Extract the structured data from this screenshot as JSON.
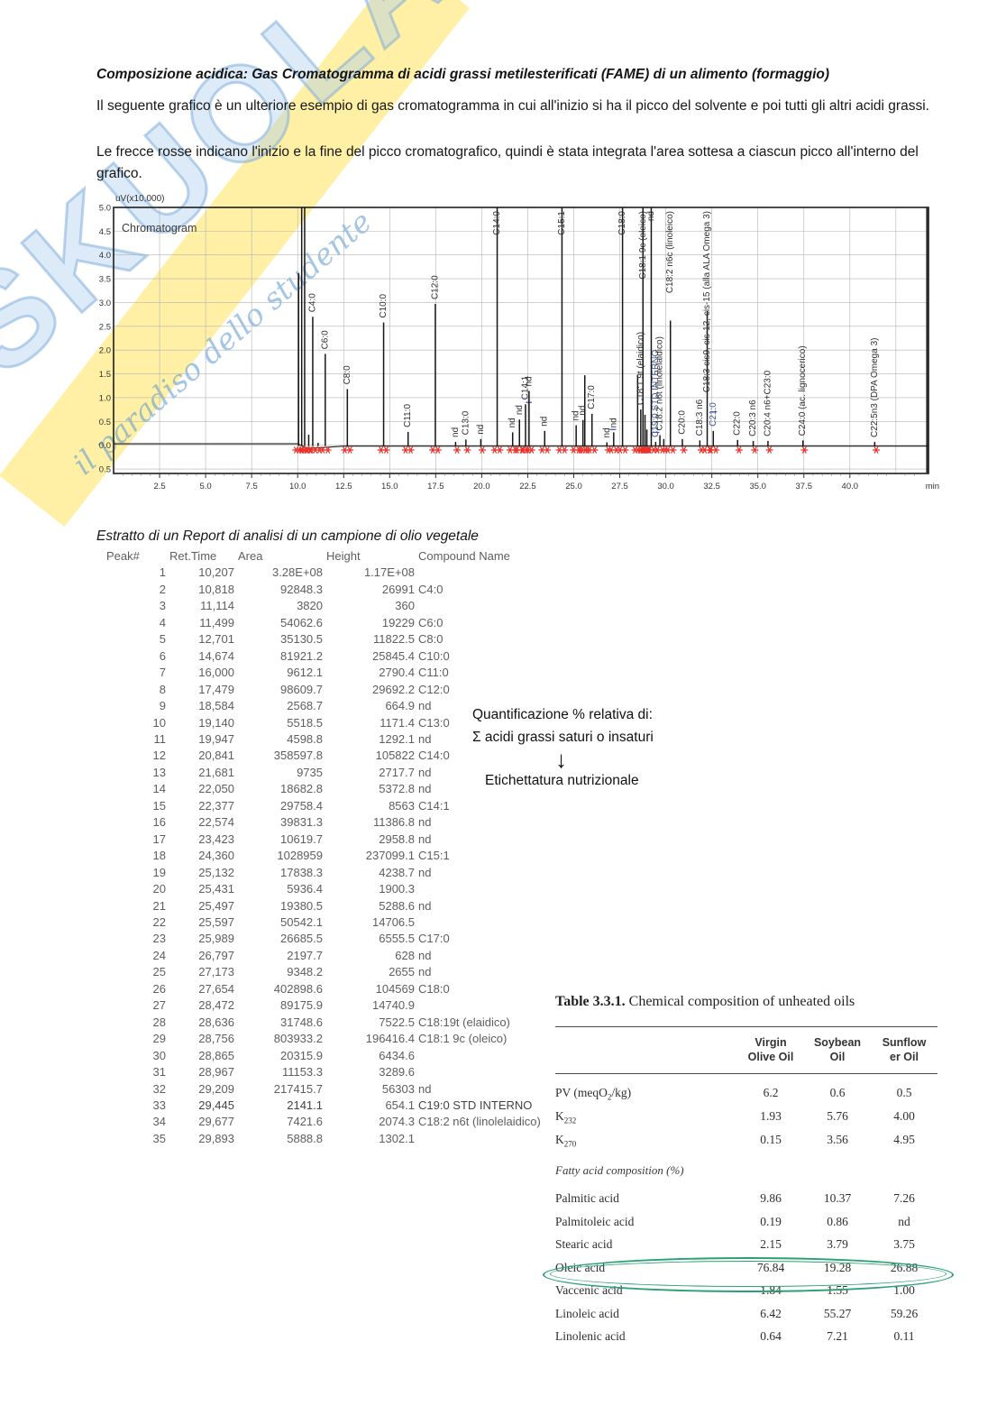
{
  "page": {
    "title": "Composizione acidica: Gas Cromatogramma di acidi grassi metilesterificati (FAME) di un alimento (formaggio)",
    "para1": "Il seguente grafico è un ulteriore esempio di gas cromatogramma in cui all'inizio si ha il picco del solvente e poi tutti gli altri acidi grassi.",
    "para2": "Le frecce rosse indicano l'inizio e la fine del picco cromatografico, quindi è stata integrata l'area sottesa a ciascun picco all'interno del grafico."
  },
  "watermark": {
    "brand": "SKUOLA",
    "tagline": "il paradiso dello studente",
    "band_color": "#ffdf43",
    "letters_color": "#9cc1e4"
  },
  "chart_data": {
    "type": "line",
    "title": "Chromatogram",
    "y_axis_label": "uV(x10,000)",
    "x_unit": "min",
    "xlim": [
      0,
      44.3
    ],
    "ylim": [
      -0.5,
      5.0
    ],
    "x_ticks": [
      2.5,
      5.0,
      7.5,
      10.0,
      12.5,
      15.0,
      17.5,
      20.0,
      22.5,
      25.0,
      27.5,
      30.0,
      32.5,
      35.0,
      37.5,
      40.0
    ],
    "y_ticks": [
      5.0,
      4.5,
      4.0,
      3.5,
      3.0,
      2.5,
      2.0,
      1.5,
      1.0,
      0.5,
      0.0,
      -0.5
    ],
    "grid": true,
    "marker_color": "#e8322a",
    "line_color": "#161616",
    "peaks": [
      {
        "t": 10.05,
        "h": 3.62
      },
      {
        "t": 10.22,
        "h": 6.0,
        "clip": true
      },
      {
        "t": 10.38,
        "h": 6.0,
        "clip": true
      },
      {
        "t": 10.6,
        "h": 0.22
      },
      {
        "t": 10.82,
        "h": 2.7,
        "label": "C4:0"
      },
      {
        "t": 11.11,
        "h": 0.05
      },
      {
        "t": 11.5,
        "h": 1.92,
        "label": "C6:0"
      },
      {
        "t": 12.7,
        "h": 1.18,
        "label": "C8:0"
      },
      {
        "t": 14.67,
        "h": 2.58,
        "label": "C10:0"
      },
      {
        "t": 16.0,
        "h": 0.28,
        "label": "C11:0"
      },
      {
        "t": 17.48,
        "h": 2.97,
        "label": "C12:0"
      },
      {
        "t": 18.58,
        "h": 0.07,
        "label": "nd"
      },
      {
        "t": 19.14,
        "h": 0.12,
        "label": "C13:0"
      },
      {
        "t": 19.95,
        "h": 0.13,
        "label": "nd"
      },
      {
        "t": 20.84,
        "h": 10.58,
        "clip": true,
        "label": "C14:0"
      },
      {
        "t": 21.68,
        "h": 0.27,
        "label": "nd"
      },
      {
        "t": 22.05,
        "h": 0.54,
        "label": "nd"
      },
      {
        "t": 22.38,
        "h": 0.86,
        "label": "C14:1"
      },
      {
        "t": 22.57,
        "h": 1.14,
        "label": "nd"
      },
      {
        "t": 23.42,
        "h": 0.3,
        "label": "nd"
      },
      {
        "t": 24.36,
        "h": 23.71,
        "clip": true,
        "label": "C15:1"
      },
      {
        "t": 25.13,
        "h": 0.42,
        "label": "nd"
      },
      {
        "t": 25.5,
        "h": 0.53,
        "label": "nd"
      },
      {
        "t": 25.6,
        "h": 1.47
      },
      {
        "t": 25.99,
        "h": 0.66,
        "label": "C17:0"
      },
      {
        "t": 26.8,
        "h": 0.06,
        "label": "nd"
      },
      {
        "t": 27.17,
        "h": 0.27,
        "label": "nd"
      },
      {
        "t": 27.65,
        "h": 10.46,
        "clip": true,
        "label": "C18:0"
      },
      {
        "t": 28.47,
        "h": 1.47
      },
      {
        "t": 28.64,
        "h": 0.75,
        "label": "C18:1 9t (elaidico)"
      },
      {
        "t": 28.76,
        "h": 19.64,
        "clip": true,
        "label": "C18:1 9c (oleico)"
      },
      {
        "t": 28.87,
        "h": 0.64
      },
      {
        "t": 28.97,
        "h": 0.33
      },
      {
        "t": 29.21,
        "h": 5.63,
        "clip": true,
        "label": "nd"
      },
      {
        "t": 29.45,
        "h": 0.07,
        "label": "C19:0 STD INTERNO",
        "color": "#3d5596"
      },
      {
        "t": 29.68,
        "h": 0.21,
        "label": "C18:2 n6t (linolelaidico)"
      },
      {
        "t": 29.89,
        "h": 0.13
      },
      {
        "t": 30.25,
        "h": 2.62,
        "label": "C18:2 n6c (linoleico)"
      },
      {
        "t": 30.9,
        "h": 0.13,
        "label": "C20:0"
      },
      {
        "t": 31.85,
        "h": 0.1,
        "label": "C18:3 n6"
      },
      {
        "t": 32.25,
        "h": 2.82,
        "label": "C18:3 cis9, cis-12, cis-15 (alla ALA Omega 3)"
      },
      {
        "t": 32.58,
        "h": 0.3,
        "label": "C21:0",
        "color": "#3d5596"
      },
      {
        "t": 33.9,
        "h": 0.11,
        "label": "C22:0"
      },
      {
        "t": 34.75,
        "h": 0.09,
        "label": "C20:3 n6"
      },
      {
        "t": 35.55,
        "h": 0.09,
        "label": "C20:4 n6+C23:0"
      },
      {
        "t": 37.45,
        "h": 0.1,
        "label": "C24:0 (ac. lignocerico)"
      },
      {
        "t": 41.35,
        "h": 0.07,
        "label": "C22:5n3 (DPA Omega 3)"
      }
    ],
    "blue_marks": [
      {
        "t1": 22.4,
        "t2": 22.72,
        "v": 0.9
      },
      {
        "t1": 26.95,
        "t2": 27.3,
        "v": 0.33
      },
      {
        "t1": 29.3,
        "t2": 29.65,
        "v": 0.27
      },
      {
        "t1": 32.42,
        "t2": 32.78,
        "v": 0.7
      }
    ]
  },
  "report": {
    "heading": "Estratto di un Report di analisi di un campione di olio vegetale",
    "columns": [
      "Peak#",
      "Ret.Time",
      "Area",
      "Height",
      "Compound Name"
    ],
    "bold_row": 33,
    "rows": [
      [
        "1",
        "10,207",
        "3.28E+08",
        "1.17E+08",
        ""
      ],
      [
        "2",
        "10,818",
        "92848.3",
        "26991",
        "C4:0"
      ],
      [
        "3",
        "11,114",
        "3820",
        "360",
        ""
      ],
      [
        "4",
        "11,499",
        "54062.6",
        "19229",
        "C6:0"
      ],
      [
        "5",
        "12,701",
        "35130.5",
        "11822.5",
        "C8:0"
      ],
      [
        "6",
        "14,674",
        "81921.2",
        "25845.4",
        "C10:0"
      ],
      [
        "7",
        "16,000",
        "9612.1",
        "2790.4",
        "C11:0"
      ],
      [
        "8",
        "17,479",
        "98609.7",
        "29692.2",
        "C12:0"
      ],
      [
        "9",
        "18,584",
        "2568.7",
        "664.9",
        "nd"
      ],
      [
        "10",
        "19,140",
        "5518.5",
        "1171.4",
        "C13:0"
      ],
      [
        "11",
        "19,947",
        "4598.8",
        "1292.1",
        "nd"
      ],
      [
        "12",
        "20,841",
        "358597.8",
        "105822",
        "C14:0"
      ],
      [
        "13",
        "21,681",
        "9735",
        "2717.7",
        "nd"
      ],
      [
        "14",
        "22,050",
        "18682.8",
        "5372.8",
        "nd"
      ],
      [
        "15",
        "22,377",
        "29758.4",
        "8563",
        "C14:1"
      ],
      [
        "16",
        "22,574",
        "39831.3",
        "11386.8",
        "nd"
      ],
      [
        "17",
        "23,423",
        "10619.7",
        "2958.8",
        "nd"
      ],
      [
        "18",
        "24,360",
        "1028959",
        "237099.1",
        "C15:1"
      ],
      [
        "19",
        "25,132",
        "17838.3",
        "4238.7",
        "nd"
      ],
      [
        "20",
        "25,431",
        "5936.4",
        "1900.3",
        ""
      ],
      [
        "21",
        "25,497",
        "19380.5",
        "5288.6",
        "nd"
      ],
      [
        "22",
        "25,597",
        "50542.1",
        "14706.5",
        ""
      ],
      [
        "23",
        "25,989",
        "26685.5",
        "6555.5",
        "C17:0"
      ],
      [
        "24",
        "26,797",
        "2197.7",
        "628",
        "nd"
      ],
      [
        "25",
        "27,173",
        "9348.2",
        "2655",
        "nd"
      ],
      [
        "26",
        "27,654",
        "402898.6",
        "104569",
        "C18:0"
      ],
      [
        "27",
        "28,472",
        "89175.9",
        "14740.9",
        ""
      ],
      [
        "28",
        "28,636",
        "31748.6",
        "7522.5",
        "C18:19t (elaidico)"
      ],
      [
        "29",
        "28,756",
        "803933.2",
        "196416.4",
        "C18:1 9c (oleico)"
      ],
      [
        "30",
        "28,865",
        "20315.9",
        "6434.6",
        ""
      ],
      [
        "31",
        "28,967",
        "11153.3",
        "3289.6",
        ""
      ],
      [
        "32",
        "29,209",
        "217415.7",
        "56303",
        "nd"
      ],
      [
        "33",
        "29,445",
        "2141.1",
        "654.1",
        "C19:0 STD INTERNO"
      ],
      [
        "34",
        "29,677",
        "7421.6",
        "2074.3",
        "C18:2  n6t (linolelaidico)"
      ],
      [
        "35",
        "29,893",
        "5888.8",
        "1302.1",
        ""
      ]
    ]
  },
  "annotation": {
    "line1": "Quantificazione % relativa di:",
    "line2": "Σ acidi grassi saturi o insaturi",
    "arrow": "↓",
    "line3": "Etichettatura nutrizionale"
  },
  "oils_table": {
    "title_bold": "Table 3.3.1.",
    "title_rest": "Chemical composition of unheated oils",
    "col_headers": [
      [
        "Virgin",
        "Olive Oil"
      ],
      [
        "Soybean",
        "Oil"
      ],
      [
        "Sunflow",
        "er Oil"
      ]
    ],
    "rows": [
      {
        "base": "PV (meqO",
        "sub": "2",
        "rest": "/kg)",
        "values": [
          "6.2",
          "0.6",
          "0.5"
        ]
      },
      {
        "base": "K",
        "sub": "232",
        "rest": "",
        "values": [
          "1.93",
          "5.76",
          "4.00"
        ]
      },
      {
        "base": "K",
        "sub": "270",
        "rest": "",
        "values": [
          "0.15",
          "3.56",
          "4.95"
        ]
      }
    ],
    "section_heading": "Fatty acid composition (%)",
    "fatty_rows": [
      {
        "label": "Palmitic acid",
        "values": [
          "9.86",
          "10.37",
          "7.26"
        ]
      },
      {
        "label": "Palmitoleic acid",
        "values": [
          "0.19",
          "0.86",
          "nd"
        ]
      },
      {
        "label": "Stearic acid",
        "values": [
          "2.15",
          "3.79",
          "3.75"
        ]
      },
      {
        "label": "Oleic acid",
        "values": [
          "76.84",
          "19.28",
          "26.88"
        ],
        "highlight": true
      },
      {
        "label": "Vaccenic acid",
        "values": [
          "1.84",
          "1.55",
          "1.00"
        ]
      },
      {
        "label": "Linoleic acid",
        "values": [
          "6.42",
          "55.27",
          "59.26"
        ]
      },
      {
        "label": "Linolenic acid",
        "values": [
          "0.64",
          "7.21",
          "0.11"
        ]
      }
    ],
    "highlight_color": "#2ba173"
  }
}
